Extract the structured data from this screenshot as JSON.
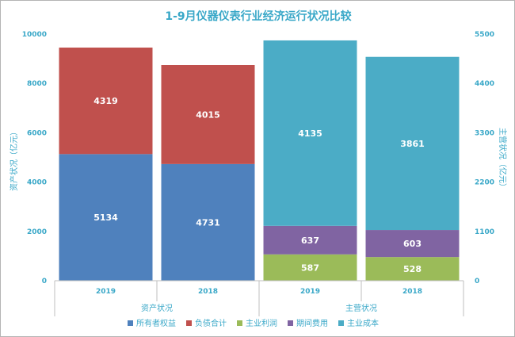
{
  "chart_data": {
    "type": "bar",
    "stacked": true,
    "title": "1-9月仪器仪表行业经济运行状况比较",
    "groups": [
      {
        "name": "资产状况",
        "axis": "left",
        "categories": [
          "2019",
          "2018"
        ],
        "series": [
          {
            "name": "所有者权益",
            "color": "#4f81bd",
            "values": [
              5134,
              4731
            ]
          },
          {
            "name": "负债合计",
            "color": "#c0504d",
            "values": [
              4319,
              4015
            ]
          }
        ]
      },
      {
        "name": "主营状况",
        "axis": "right",
        "categories": [
          "2019",
          "2018"
        ],
        "series": [
          {
            "name": "主业利润",
            "color": "#9bbb59",
            "values": [
              587,
              528
            ]
          },
          {
            "name": "期间费用",
            "color": "#8064a2",
            "values": [
              637,
              603
            ]
          },
          {
            "name": "主业成本",
            "color": "#4bacc6",
            "values": [
              4135,
              3861
            ]
          }
        ]
      }
    ],
    "y_left": {
      "label": "资产状况（亿元）",
      "min": 0,
      "max": 10000,
      "ticks": [
        0,
        2000,
        4000,
        6000,
        8000,
        10000
      ]
    },
    "y_right": {
      "label": "主营状况（亿元）",
      "min": 0,
      "max": 5500,
      "ticks": [
        0,
        1100,
        2200,
        3300,
        4400,
        5500
      ]
    },
    "grid": false,
    "legend_position": "bottom",
    "legend": [
      "所有者权益",
      "负债合计",
      "主业利润",
      "期间费用",
      "主业成本"
    ]
  }
}
